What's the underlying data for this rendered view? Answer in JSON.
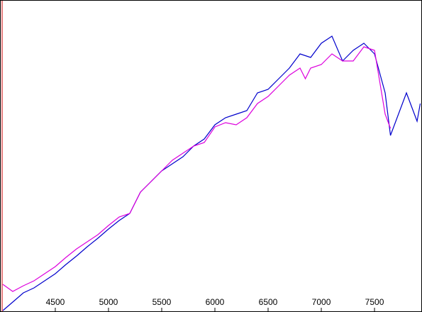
{
  "chart_data": {
    "type": "line",
    "xlim": [
      4007,
      7933
    ],
    "ylim": [
      0,
      437
    ],
    "xticks": [
      4500,
      5000,
      5500,
      6000,
      6500,
      7000,
      7500
    ],
    "series": [
      {
        "color": "#0000cc",
        "x": [
          4007,
          4100,
          4200,
          4300,
          4400,
          4500,
          4600,
          4700,
          4800,
          4900,
          5000,
          5100,
          5200,
          5300,
          5400,
          5500,
          5600,
          5700,
          5800,
          5900,
          6000,
          6100,
          6200,
          6300,
          6400,
          6500,
          6600,
          6700,
          6800,
          6900,
          7000,
          7100,
          7200,
          7300,
          7400,
          7500,
          7600,
          7650,
          7700,
          7800,
          7850,
          7900,
          7930
        ],
        "values": [
          0,
          12,
          25,
          32,
          42,
          52,
          65,
          77,
          90,
          102,
          115,
          127,
          137,
          167,
          182,
          197,
          207,
          217,
          232,
          242,
          262,
          272,
          277,
          282,
          307,
          312,
          327,
          342,
          362,
          357,
          377,
          387,
          352,
          367,
          377,
          362,
          307,
          247,
          267,
          307,
          287,
          267,
          292
        ]
      },
      {
        "color": "#dd00dd",
        "x": [
          4007,
          4100,
          4200,
          4300,
          4400,
          4500,
          4600,
          4700,
          4800,
          4900,
          5000,
          5100,
          5200,
          5300,
          5400,
          5500,
          5600,
          5700,
          5800,
          5900,
          6000,
          6100,
          6200,
          6300,
          6400,
          6500,
          6600,
          6700,
          6800,
          6850,
          6900,
          7000,
          7100,
          7200,
          7300,
          7400,
          7500,
          7600,
          7650
        ],
        "values": [
          37,
          27,
          35,
          42,
          52,
          62,
          75,
          87,
          97,
          107,
          120,
          132,
          137,
          167,
          182,
          197,
          212,
          222,
          232,
          237,
          259,
          265,
          262,
          272,
          292,
          302,
          317,
          332,
          342,
          327,
          342,
          347,
          362,
          352,
          352,
          372,
          367,
          277,
          257
        ]
      }
    ]
  }
}
